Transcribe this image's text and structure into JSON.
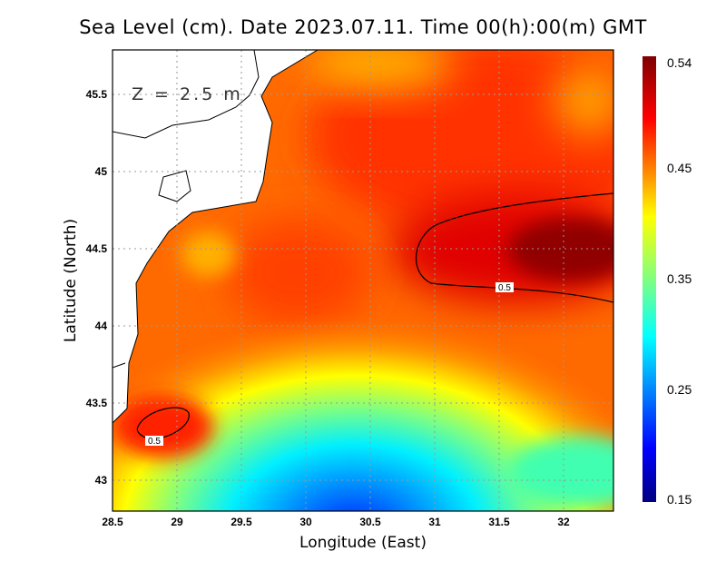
{
  "chart_data": {
    "type": "heatmap",
    "title": "Sea Level (cm). Date 2023.07.11. Time 00(h):00(m) GMT",
    "xlabel": "Longitude (East)",
    "ylabel": "Latitude (North)",
    "annotation": "Z = 2.5 m",
    "xlim": [
      28.5,
      32.39
    ],
    "ylim": [
      42.8,
      45.79
    ],
    "xticks": [
      "28.5",
      "29",
      "29.5",
      "30",
      "30.5",
      "31",
      "31.5",
      "32"
    ],
    "yticks": [
      "43",
      "43.5",
      "44",
      "44.5",
      "45",
      "45.5"
    ],
    "grid": true,
    "colorbar": {
      "min": 0.15,
      "max": 0.54,
      "ticks": [
        "0.15",
        "0.25",
        "0.35",
        "0.45",
        "0.54"
      ],
      "colormap": "jet"
    },
    "contours": [
      {
        "level": 0.5,
        "label": "0.5",
        "region": "east, around 31.5E 44.4N"
      },
      {
        "level": 0.5,
        "label": "0.5",
        "region": "southwest, around 28.8E 43.3N"
      }
    ],
    "features": {
      "max_region": "east 31.5-32.4E, 44.3-44.7N, ~0.54",
      "min_region": "south 30.0-30.5E, 42.8N, ~0.17"
    }
  }
}
